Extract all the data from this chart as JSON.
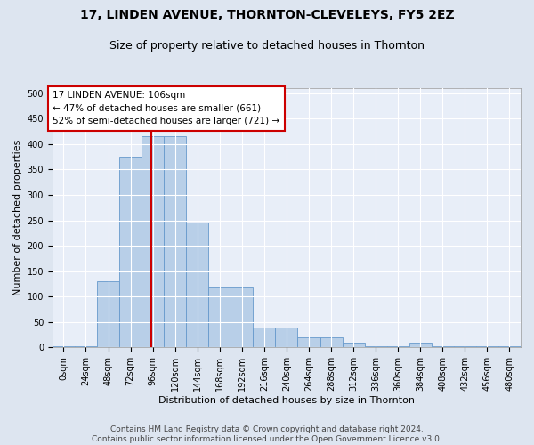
{
  "title": "17, LINDEN AVENUE, THORNTON-CLEVELEYS, FY5 2EZ",
  "subtitle": "Size of property relative to detached houses in Thornton",
  "xlabel": "Distribution of detached houses by size in Thornton",
  "ylabel": "Number of detached properties",
  "bar_color": "#b8cfe8",
  "bar_edge_color": "#6699cc",
  "background_color": "#e8eef8",
  "grid_color": "#ffffff",
  "bin_edges": [
    0,
    24,
    48,
    72,
    96,
    120,
    144,
    168,
    192,
    216,
    240,
    264,
    288,
    312,
    336,
    360,
    384,
    408,
    432,
    456,
    480,
    504
  ],
  "bar_heights": [
    3,
    3,
    130,
    375,
    415,
    415,
    245,
    118,
    118,
    40,
    40,
    20,
    20,
    10,
    3,
    3,
    10,
    3,
    3,
    3,
    3
  ],
  "property_size": 106,
  "annotation_line1": "17 LINDEN AVENUE: 106sqm",
  "annotation_line2": "← 47% of detached houses are smaller (661)",
  "annotation_line3": "52% of semi-detached houses are larger (721) →",
  "annotation_box_color": "#ffffff",
  "annotation_border_color": "#cc0000",
  "vline_color": "#cc0000",
  "ylim": [
    0,
    510
  ],
  "xlim": [
    0,
    504
  ],
  "yticks": [
    0,
    50,
    100,
    150,
    200,
    250,
    300,
    350,
    400,
    450,
    500
  ],
  "footer_text": "Contains HM Land Registry data © Crown copyright and database right 2024.\nContains public sector information licensed under the Open Government Licence v3.0.",
  "title_fontsize": 10,
  "subtitle_fontsize": 9,
  "axis_label_fontsize": 8,
  "tick_fontsize": 7,
  "annotation_fontsize": 7.5,
  "footer_fontsize": 6.5
}
